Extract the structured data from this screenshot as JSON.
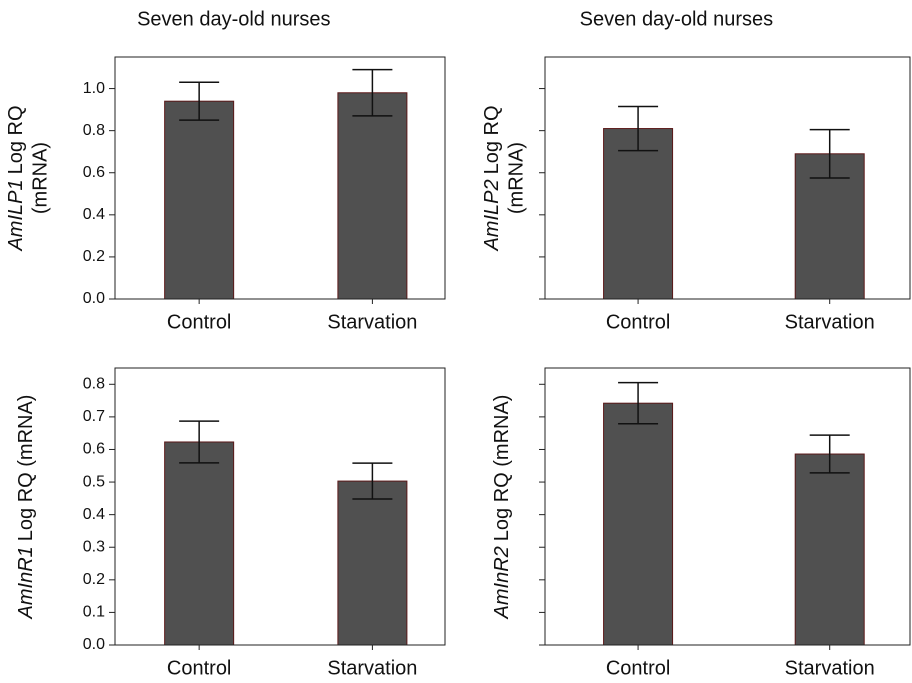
{
  "chart_data": [
    {
      "type": "bar",
      "title": "Seven day-old nurses",
      "ylabel": {
        "gene": "AmILP1",
        "text": "Log RQ",
        "line2": "(mRNA)"
      },
      "categories": [
        "Control",
        "Starvation"
      ],
      "values": [
        0.94,
        0.98
      ],
      "errors": [
        0.09,
        0.11
      ],
      "ylim": [
        0,
        1.15
      ],
      "yticks": [
        {
          "value": 0,
          "label": "0.0"
        },
        0.2,
        0.4,
        0.6,
        0.8,
        {
          "value": 1,
          "label": "1.0"
        }
      ],
      "tick_labels": true,
      "color": "#505050"
    },
    {
      "type": "bar",
      "title": "Seven day-old nurses",
      "ylabel": {
        "gene": "AmILP2",
        "text": "Log RQ",
        "line2": "(mRNA)"
      },
      "categories": [
        "Control",
        "Starvation"
      ],
      "values": [
        0.81,
        0.69
      ],
      "errors": [
        0.105,
        0.115
      ],
      "ylim": [
        0,
        1.15
      ],
      "yticks": [
        0,
        0.2,
        0.4,
        0.6,
        0.8,
        1
      ],
      "tick_labels": false,
      "color": "#505050"
    },
    {
      "type": "bar",
      "ylabel": {
        "gene": "AmInR1",
        "text": "Log RQ (mRNA)"
      },
      "categories": [
        "Control",
        "Starvation"
      ],
      "values": [
        0.623,
        0.503
      ],
      "errors": [
        0.064,
        0.055
      ],
      "ylim": [
        0,
        0.85
      ],
      "yticks": [
        {
          "value": 0,
          "label": "0.0"
        },
        0.1,
        0.2,
        0.3,
        0.4,
        0.5,
        0.6,
        0.7,
        0.8
      ],
      "tick_labels": true,
      "color": "#505050"
    },
    {
      "type": "bar",
      "ylabel": {
        "gene": "AmInR2",
        "text": "Log RQ (mRNA)"
      },
      "categories": [
        "Control",
        "Starvation"
      ],
      "values": [
        0.742,
        0.586
      ],
      "errors": [
        0.063,
        0.058
      ],
      "ylim": [
        0,
        0.85
      ],
      "yticks": [
        0,
        0.1,
        0.2,
        0.3,
        0.4,
        0.5,
        0.6,
        0.7,
        0.8
      ],
      "tick_labels": false,
      "color": "#505050"
    }
  ]
}
